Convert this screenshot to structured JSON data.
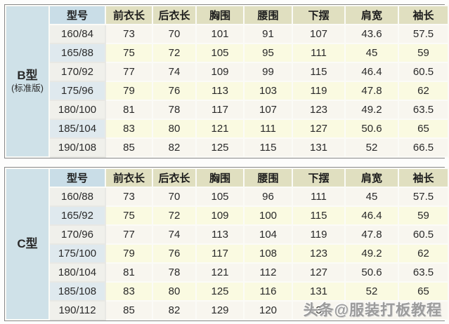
{
  "columns": [
    "型号",
    "前衣长",
    "后衣长",
    "胸围",
    "腰围",
    "下摆",
    "肩宽",
    "袖长"
  ],
  "tables": [
    {
      "id": "B",
      "label_line1": "B型",
      "label_line2": "(标准版)",
      "rows": [
        [
          "160/84",
          "73",
          "70",
          "101",
          "91",
          "107",
          "43.6",
          "57.5"
        ],
        [
          "165/88",
          "75",
          "72",
          "105",
          "95",
          "111",
          "45",
          "59"
        ],
        [
          "170/92",
          "77",
          "74",
          "109",
          "99",
          "115",
          "46.4",
          "60.5"
        ],
        [
          "175/96",
          "79",
          "76",
          "113",
          "103",
          "119",
          "47.8",
          "62"
        ],
        [
          "180/100",
          "81",
          "78",
          "117",
          "107",
          "123",
          "49.2",
          "63.5"
        ],
        [
          "185/104",
          "83",
          "80",
          "121",
          "111",
          "127",
          "50.6",
          "65"
        ],
        [
          "190/108",
          "85",
          "82",
          "125",
          "115",
          "131",
          "52",
          "66.5"
        ]
      ]
    },
    {
      "id": "C",
      "label_line1": "C型",
      "label_line2": "",
      "rows": [
        [
          "160/88",
          "73",
          "70",
          "105",
          "96",
          "111",
          "45",
          "57.5"
        ],
        [
          "165/92",
          "75",
          "72",
          "109",
          "100",
          "115",
          "46.4",
          "59"
        ],
        [
          "170/96",
          "77",
          "74",
          "113",
          "104",
          "119",
          "47.8",
          "60.5"
        ],
        [
          "175/100",
          "79",
          "76",
          "117",
          "108",
          "123",
          "49.2",
          "62"
        ],
        [
          "180/104",
          "81",
          "78",
          "121",
          "112",
          "127",
          "50.6",
          "63.5"
        ],
        [
          "185/108",
          "83",
          "80",
          "125",
          "116",
          "131",
          "52",
          "65"
        ],
        [
          "190/112",
          "85",
          "82",
          "129",
          "120",
          "135",
          "",
          ""
        ]
      ]
    }
  ],
  "watermark": "头条@服装打板教程",
  "colors": {
    "label_blue": "#cfe1e8",
    "model_header_blue": "#c9dde7",
    "header_khaki": "#e0dfc0",
    "row_white": "#f8f6ef",
    "row_yellow": "#fafae1",
    "model_col_odd": "#f0f0eb",
    "model_col_even": "#dfe9ee",
    "text": "#2a2a2a",
    "watermark_gray": "#9b9b9b"
  }
}
